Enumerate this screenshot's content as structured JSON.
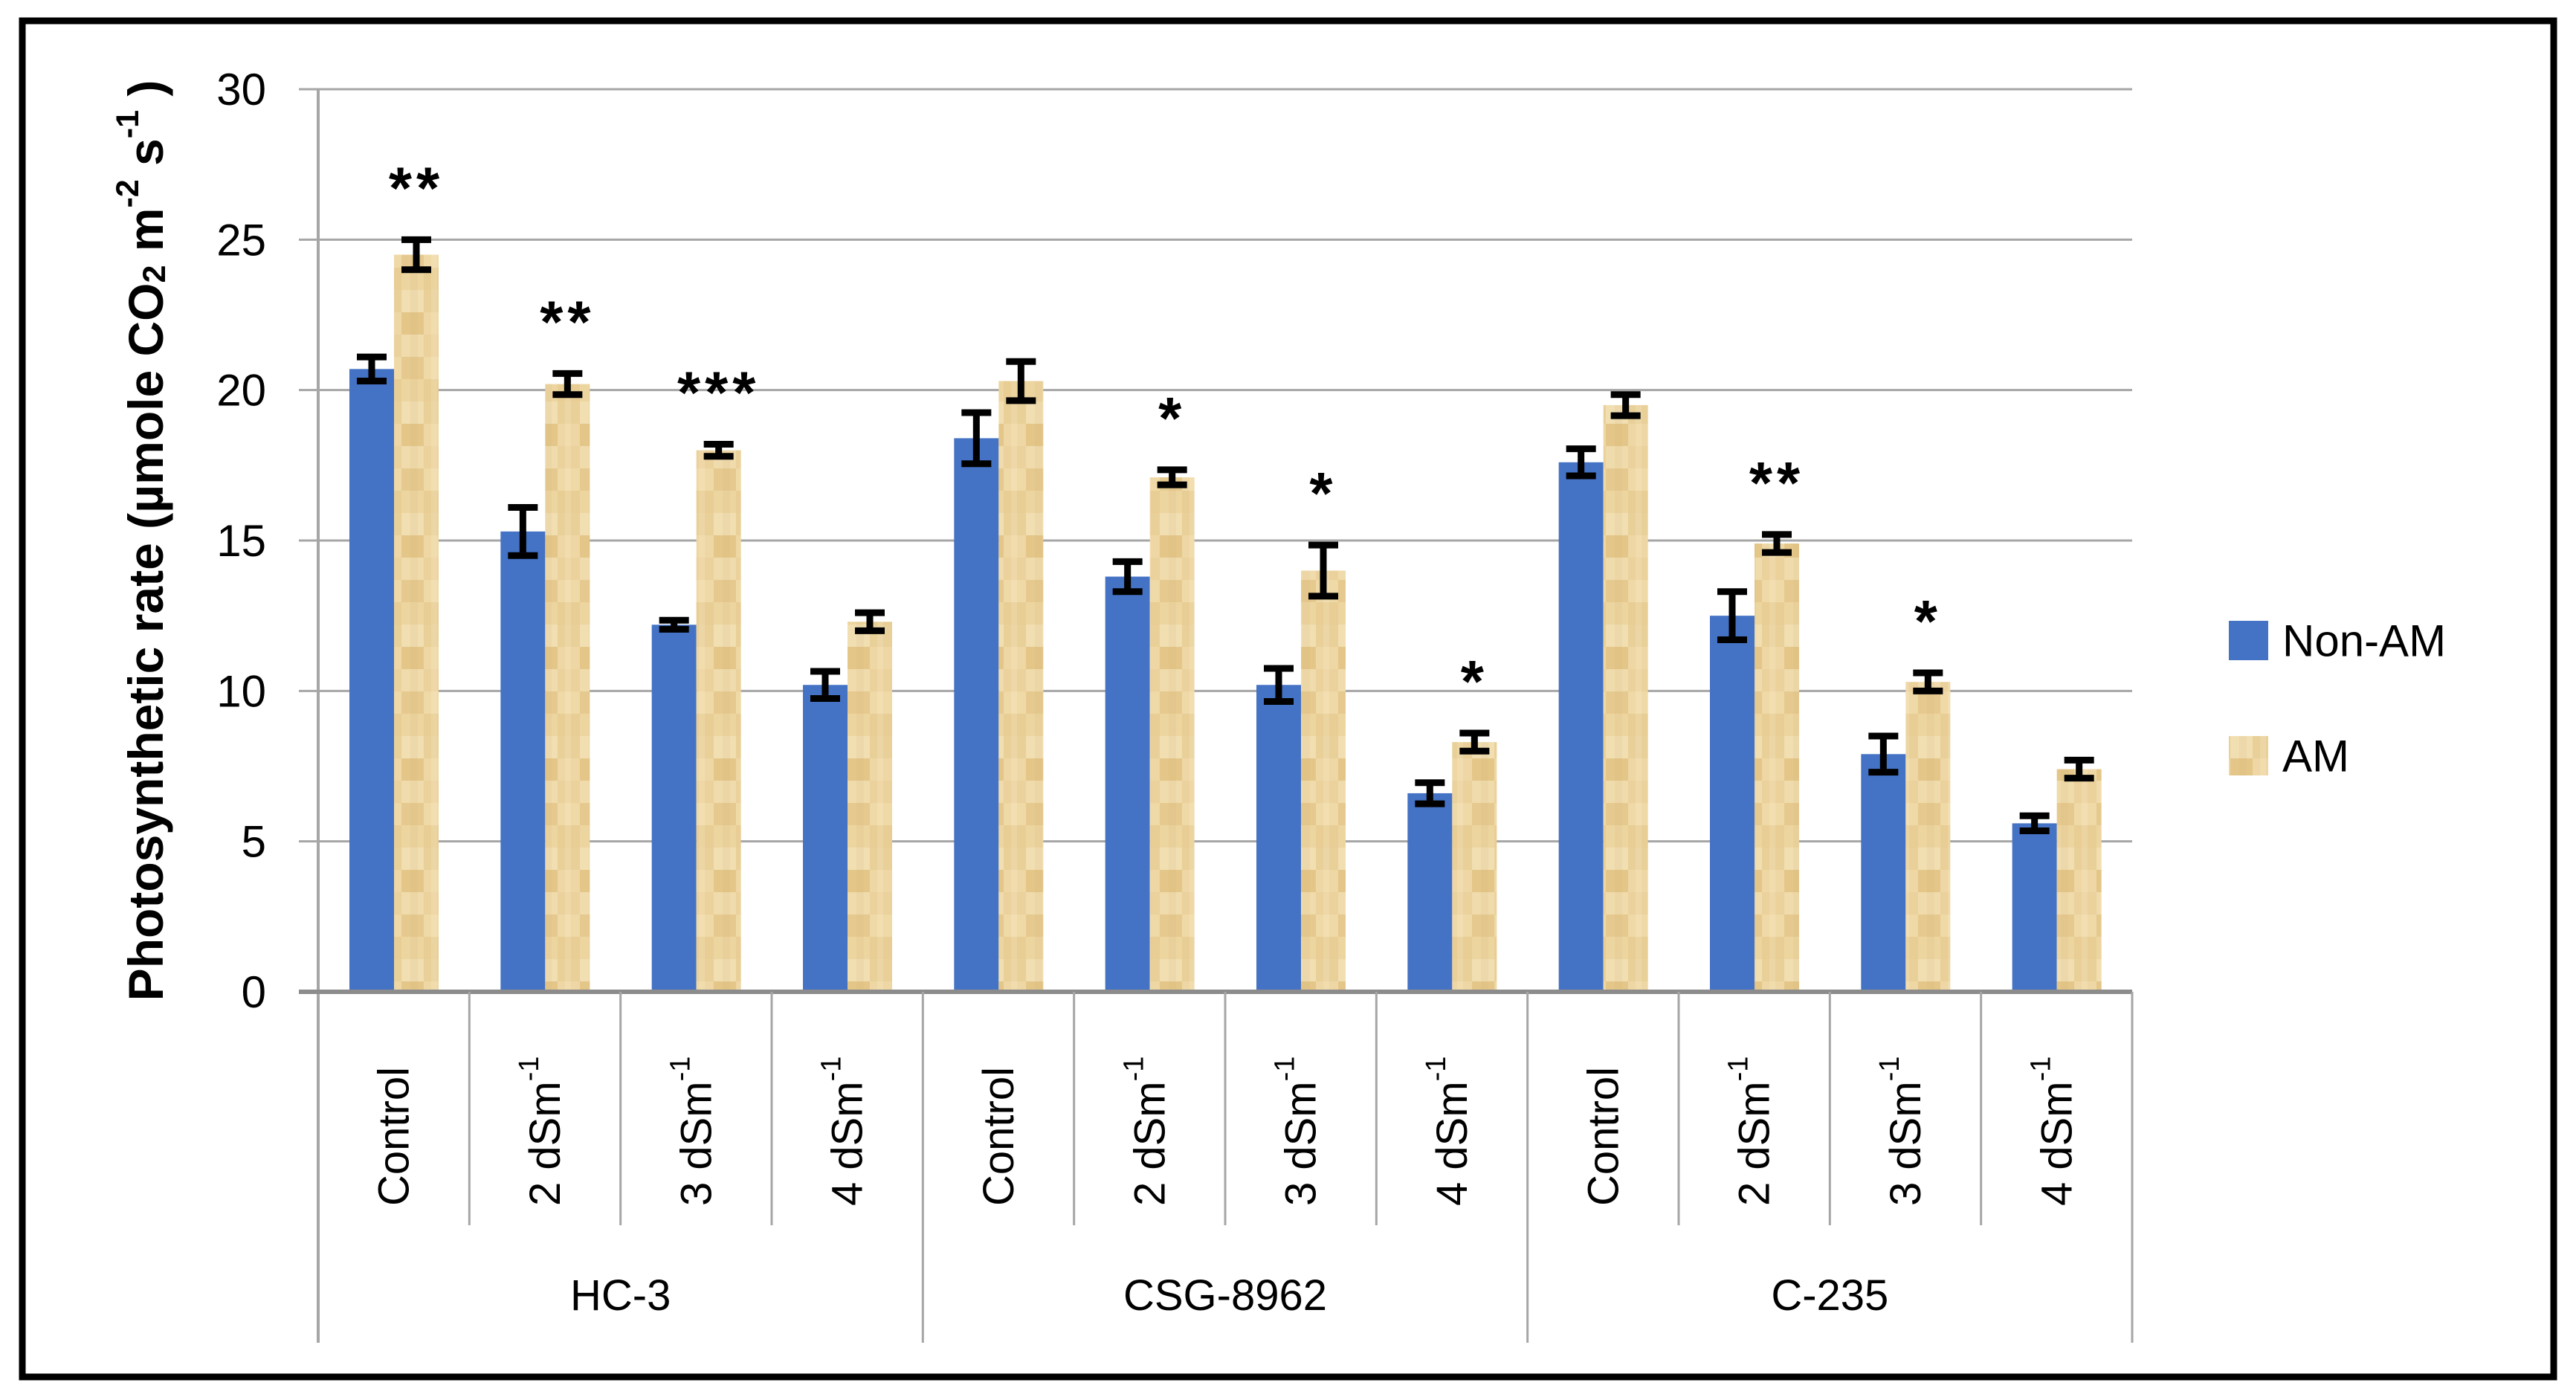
{
  "figure": {
    "background": "#FFFFFF",
    "border_color": "#000000"
  },
  "chart_data": {
    "type": "bar",
    "title": "",
    "ylabel": "Photosynthetic rate (µmole CO2 m-2 s-1 )",
    "ylabel_parts": [
      {
        "t": "Photosynthetic rate (µmole CO",
        "shift": "base"
      },
      {
        "t": "2",
        "shift": "sub"
      },
      {
        "t": " m",
        "shift": "base"
      },
      {
        "t": "-2",
        "shift": "sup"
      },
      {
        "t": " s",
        "shift": "base"
      },
      {
        "t": "-1",
        "shift": "sup"
      },
      {
        "t": " )",
        "shift": "base"
      }
    ],
    "ylim": [
      0,
      30
    ],
    "ytick_step": 5,
    "yticks": [
      0,
      5,
      10,
      15,
      20,
      25,
      30
    ],
    "grid": true,
    "legend_position": "right",
    "groups": [
      "HC-3",
      "CSG-8962",
      "C-235"
    ],
    "treatments": [
      {
        "label": "Control",
        "parts": [
          {
            "t": "Control",
            "shift": "base"
          }
        ]
      },
      {
        "label": "2 dSm-1",
        "parts": [
          {
            "t": "2 dSm",
            "shift": "base"
          },
          {
            "t": "-1",
            "shift": "sup"
          }
        ]
      },
      {
        "label": "3 dSm-1",
        "parts": [
          {
            "t": "3 dSm",
            "shift": "base"
          },
          {
            "t": "-1",
            "shift": "sup"
          }
        ]
      },
      {
        "label": "4 dSm-1",
        "parts": [
          {
            "t": "4 dSm",
            "shift": "base"
          },
          {
            "t": "-1",
            "shift": "sup"
          }
        ]
      }
    ],
    "series": [
      {
        "name": "Non-AM",
        "color": "#4472C4",
        "values": [
          [
            20.7,
            15.3,
            12.2,
            10.2
          ],
          [
            18.4,
            13.8,
            10.2,
            6.6
          ],
          [
            17.6,
            12.5,
            7.9,
            5.6
          ]
        ],
        "errors": [
          [
            0.4,
            0.8,
            0.15,
            0.45
          ],
          [
            0.85,
            0.5,
            0.55,
            0.35
          ],
          [
            0.45,
            0.8,
            0.6,
            0.25
          ]
        ]
      },
      {
        "name": "AM",
        "color": "#ECD49E",
        "texture_palette": [
          "#F0DBAC",
          "#EBD19C",
          "#E6C98E",
          "#EFD9A6",
          "#EDD5A0",
          "#E8CD94",
          "#F1DEB1",
          "#E9D098",
          "#E4C689",
          "#EED7A4"
        ],
        "values": [
          [
            24.5,
            20.2,
            18.0,
            12.3
          ],
          [
            20.3,
            17.1,
            14.0,
            8.3
          ],
          [
            19.5,
            14.9,
            10.3,
            7.4
          ]
        ],
        "errors": [
          [
            0.5,
            0.35,
            0.2,
            0.3
          ],
          [
            0.65,
            0.25,
            0.85,
            0.3
          ],
          [
            0.35,
            0.3,
            0.3,
            0.3
          ]
        ]
      }
    ],
    "significance": {
      "applies_to": "AM",
      "labels": [
        [
          "**",
          "**",
          "***",
          ""
        ],
        [
          "",
          "*",
          "*",
          "*"
        ],
        [
          "",
          "**",
          "*",
          ""
        ]
      ]
    },
    "axis_colors": {
      "gridline": "#A6A6A6",
      "axis": "#8C8C8C",
      "baseline": "#8C8C8C",
      "error_bar": "#000000"
    }
  }
}
